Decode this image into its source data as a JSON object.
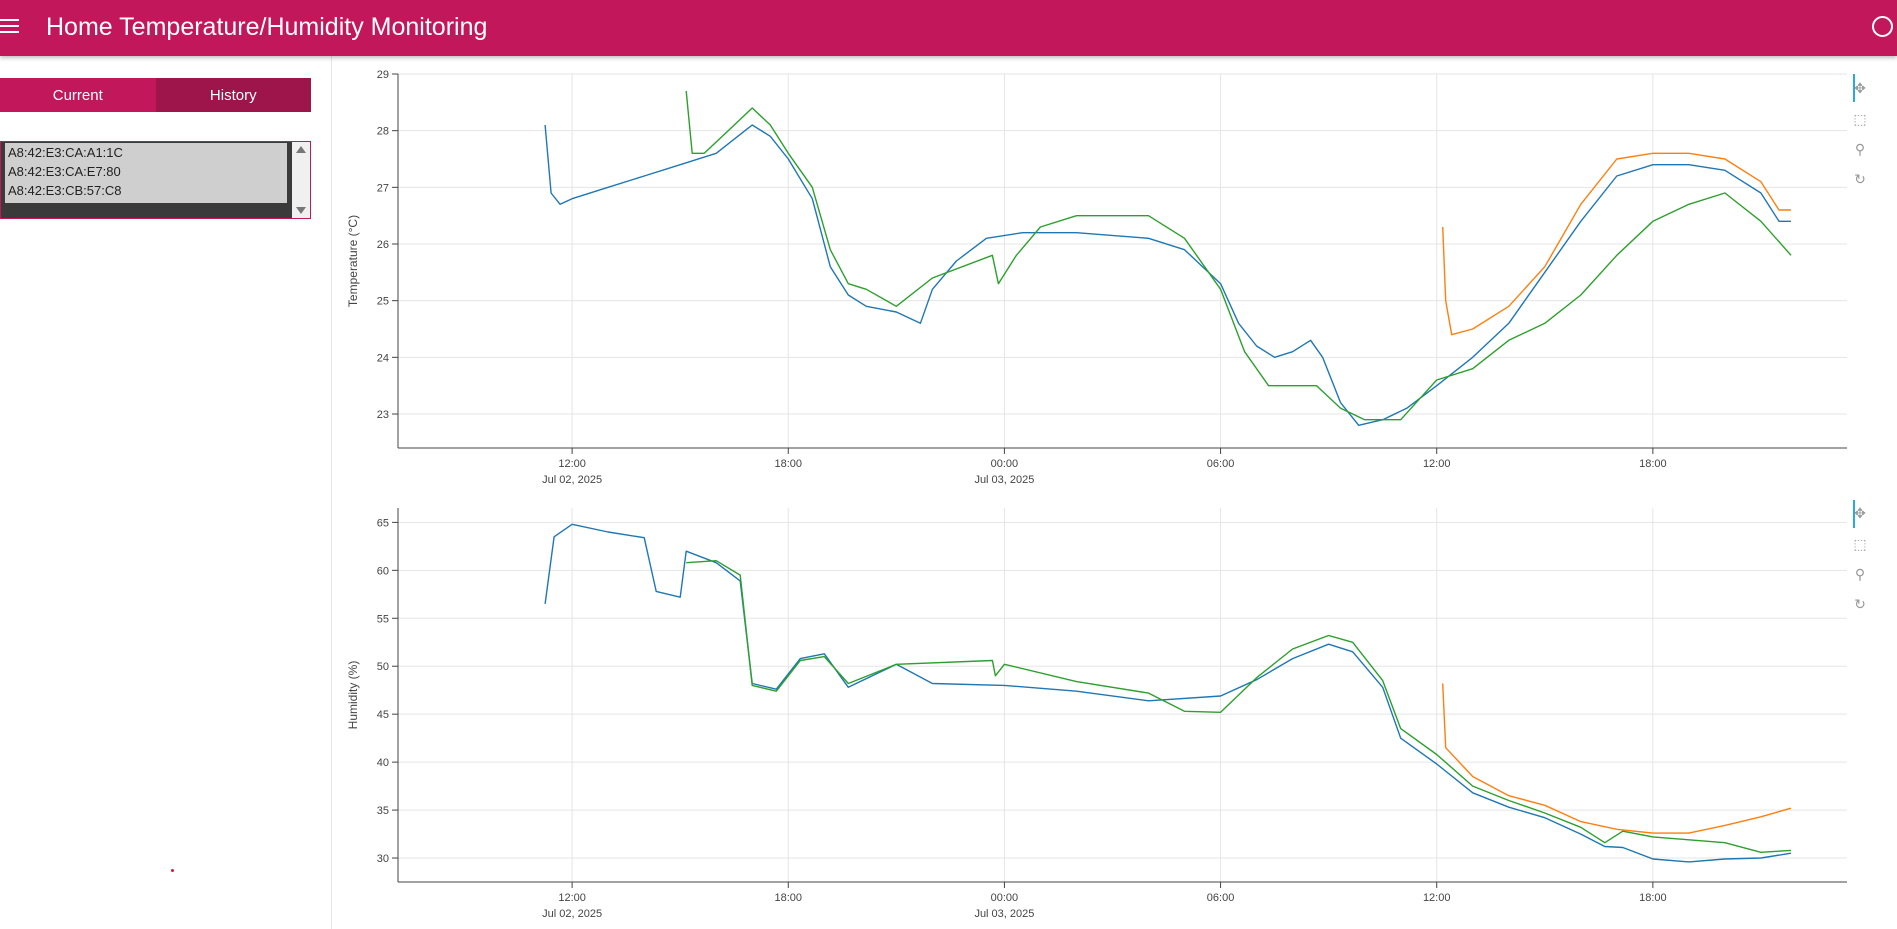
{
  "app": {
    "title": "Home Temperature/Humidity Monitoring"
  },
  "icons": {
    "menu": "hamburger-menu-icon",
    "status": "circle-status-icon",
    "pan": "pan-icon",
    "box_zoom": "box-zoom-icon",
    "wheel_zoom": "wheel-zoom-icon",
    "reset": "reset-icon"
  },
  "colors": {
    "brand": "#c2185b",
    "brand_dark": "#9d154a",
    "blue": "#1f77b4",
    "orange": "#ff7f0e",
    "green": "#2ca02c",
    "tool_accent": "#26aae1"
  },
  "tabs": [
    {
      "label": "Current"
    },
    {
      "label": "History"
    }
  ],
  "devices": [
    {
      "mac": "A8:42:E3:CA:A1:1C"
    },
    {
      "mac": "A8:42:E3:CA:E7:80"
    },
    {
      "mac": "A8:42:E3:CB:57:C8"
    }
  ],
  "chart_data": [
    {
      "type": "line",
      "title": "",
      "xlabel": "",
      "ylabel": "Temperature (°C)",
      "ylim": [
        22.4,
        29
      ],
      "xlim": [
        "2025-07-02 07:10",
        "2025-07-03 23:30"
      ],
      "x_ticks": [
        {
          "time": "2025-07-02 12:00",
          "label": "12:00",
          "sublabel": "Jul 02, 2025"
        },
        {
          "time": "2025-07-02 18:00",
          "label": "18:00",
          "sublabel": ""
        },
        {
          "time": "2025-07-03 00:00",
          "label": "00:00",
          "sublabel": "Jul 03, 2025"
        },
        {
          "time": "2025-07-03 06:00",
          "label": "06:00",
          "sublabel": ""
        },
        {
          "time": "2025-07-03 12:00",
          "label": "12:00",
          "sublabel": ""
        },
        {
          "time": "2025-07-03 18:00",
          "label": "18:00",
          "sublabel": ""
        }
      ],
      "y_ticks": [
        23,
        24,
        25,
        26,
        27,
        28,
        29
      ],
      "grid": true,
      "series": [
        {
          "color": "#1f77b4",
          "points": [
            [
              "2025-07-02 11:15",
              28.1
            ],
            [
              "2025-07-02 11:25",
              26.9
            ],
            [
              "2025-07-02 11:40",
              26.7
            ],
            [
              "2025-07-02 12:00",
              26.8
            ],
            [
              "2025-07-02 13:00",
              27.0
            ],
            [
              "2025-07-02 14:00",
              27.2
            ],
            [
              "2025-07-02 15:00",
              27.4
            ],
            [
              "2025-07-02 16:00",
              27.6
            ],
            [
              "2025-07-02 17:00",
              28.1
            ],
            [
              "2025-07-02 17:30",
              27.9
            ],
            [
              "2025-07-02 18:00",
              27.5
            ],
            [
              "2025-07-02 18:40",
              26.8
            ],
            [
              "2025-07-02 19:10",
              25.6
            ],
            [
              "2025-07-02 19:40",
              25.1
            ],
            [
              "2025-07-02 20:10",
              24.9
            ],
            [
              "2025-07-02 21:00",
              24.8
            ],
            [
              "2025-07-02 21:40",
              24.6
            ],
            [
              "2025-07-02 22:00",
              25.2
            ],
            [
              "2025-07-02 22:40",
              25.7
            ],
            [
              "2025-07-02 23:30",
              26.1
            ],
            [
              "2025-07-03 00:30",
              26.2
            ],
            [
              "2025-07-03 02:00",
              26.2
            ],
            [
              "2025-07-03 04:00",
              26.1
            ],
            [
              "2025-07-03 05:00",
              25.9
            ],
            [
              "2025-07-03 06:00",
              25.3
            ],
            [
              "2025-07-03 06:30",
              24.6
            ],
            [
              "2025-07-03 07:00",
              24.2
            ],
            [
              "2025-07-03 07:30",
              24.0
            ],
            [
              "2025-07-03 08:00",
              24.1
            ],
            [
              "2025-07-03 08:30",
              24.3
            ],
            [
              "2025-07-03 08:50",
              24.0
            ],
            [
              "2025-07-03 09:20",
              23.2
            ],
            [
              "2025-07-03 09:50",
              22.8
            ],
            [
              "2025-07-03 10:30",
              22.9
            ],
            [
              "2025-07-03 11:10",
              23.1
            ],
            [
              "2025-07-03 12:00",
              23.5
            ],
            [
              "2025-07-03 13:00",
              24.0
            ],
            [
              "2025-07-03 14:00",
              24.6
            ],
            [
              "2025-07-03 15:00",
              25.5
            ],
            [
              "2025-07-03 16:00",
              26.4
            ],
            [
              "2025-07-03 17:00",
              27.2
            ],
            [
              "2025-07-03 18:00",
              27.4
            ],
            [
              "2025-07-03 19:00",
              27.4
            ],
            [
              "2025-07-03 20:00",
              27.3
            ],
            [
              "2025-07-03 21:00",
              26.9
            ],
            [
              "2025-07-03 21:30",
              26.4
            ],
            [
              "2025-07-03 21:50",
              26.4
            ]
          ]
        },
        {
          "color": "#ff7f0e",
          "points": [
            [
              "2025-07-03 12:10",
              26.3
            ],
            [
              "2025-07-03 12:15",
              25.0
            ],
            [
              "2025-07-03 12:25",
              24.4
            ],
            [
              "2025-07-03 13:00",
              24.5
            ],
            [
              "2025-07-03 14:00",
              24.9
            ],
            [
              "2025-07-03 15:00",
              25.6
            ],
            [
              "2025-07-03 16:00",
              26.7
            ],
            [
              "2025-07-03 17:00",
              27.5
            ],
            [
              "2025-07-03 18:00",
              27.6
            ],
            [
              "2025-07-03 19:00",
              27.6
            ],
            [
              "2025-07-03 20:00",
              27.5
            ],
            [
              "2025-07-03 21:00",
              27.1
            ],
            [
              "2025-07-03 21:30",
              26.6
            ],
            [
              "2025-07-03 21:50",
              26.6
            ]
          ]
        },
        {
          "color": "#2ca02c",
          "points": [
            [
              "2025-07-02 15:10",
              28.7
            ],
            [
              "2025-07-02 15:20",
              27.6
            ],
            [
              "2025-07-02 15:40",
              27.6
            ],
            [
              "2025-07-02 16:20",
              28.0
            ],
            [
              "2025-07-02 17:00",
              28.4
            ],
            [
              "2025-07-02 17:30",
              28.1
            ],
            [
              "2025-07-02 18:00",
              27.6
            ],
            [
              "2025-07-02 18:40",
              27.0
            ],
            [
              "2025-07-02 19:10",
              25.9
            ],
            [
              "2025-07-02 19:40",
              25.3
            ],
            [
              "2025-07-02 20:10",
              25.2
            ],
            [
              "2025-07-02 21:00",
              24.9
            ],
            [
              "2025-07-02 22:00",
              25.4
            ],
            [
              "2025-07-02 23:40",
              25.8
            ],
            [
              "2025-07-02 23:50",
              25.3
            ],
            [
              "2025-07-03 00:20",
              25.8
            ],
            [
              "2025-07-03 01:00",
              26.3
            ],
            [
              "2025-07-03 02:00",
              26.5
            ],
            [
              "2025-07-03 04:00",
              26.5
            ],
            [
              "2025-07-03 05:00",
              26.1
            ],
            [
              "2025-07-03 06:00",
              25.2
            ],
            [
              "2025-07-03 06:40",
              24.1
            ],
            [
              "2025-07-03 07:20",
              23.5
            ],
            [
              "2025-07-03 08:00",
              23.5
            ],
            [
              "2025-07-03 08:40",
              23.5
            ],
            [
              "2025-07-03 09:20",
              23.1
            ],
            [
              "2025-07-03 10:00",
              22.9
            ],
            [
              "2025-07-03 11:00",
              22.9
            ],
            [
              "2025-07-03 12:00",
              23.6
            ],
            [
              "2025-07-03 13:00",
              23.8
            ],
            [
              "2025-07-03 14:00",
              24.3
            ],
            [
              "2025-07-03 15:00",
              24.6
            ],
            [
              "2025-07-03 16:00",
              25.1
            ],
            [
              "2025-07-03 17:00",
              25.8
            ],
            [
              "2025-07-03 18:00",
              26.4
            ],
            [
              "2025-07-03 19:00",
              26.7
            ],
            [
              "2025-07-03 20:00",
              26.9
            ],
            [
              "2025-07-03 21:00",
              26.4
            ],
            [
              "2025-07-03 21:50",
              25.8
            ]
          ]
        }
      ]
    },
    {
      "type": "line",
      "title": "",
      "xlabel": "",
      "ylabel": "Humidity (%)",
      "ylim": [
        27.5,
        66.5
      ],
      "xlim": [
        "2025-07-02 07:10",
        "2025-07-03 23:30"
      ],
      "x_ticks": [
        {
          "time": "2025-07-02 12:00",
          "label": "12:00",
          "sublabel": "Jul 02, 2025"
        },
        {
          "time": "2025-07-02 18:00",
          "label": "18:00",
          "sublabel": ""
        },
        {
          "time": "2025-07-03 00:00",
          "label": "00:00",
          "sublabel": "Jul 03, 2025"
        },
        {
          "time": "2025-07-03 06:00",
          "label": "06:00",
          "sublabel": ""
        },
        {
          "time": "2025-07-03 12:00",
          "label": "12:00",
          "sublabel": ""
        },
        {
          "time": "2025-07-03 18:00",
          "label": "18:00",
          "sublabel": ""
        }
      ],
      "y_ticks": [
        30,
        35,
        40,
        45,
        50,
        55,
        60,
        65
      ],
      "grid": true,
      "series": [
        {
          "color": "#1f77b4",
          "points": [
            [
              "2025-07-02 11:15",
              56.5
            ],
            [
              "2025-07-02 11:30",
              63.5
            ],
            [
              "2025-07-02 12:00",
              64.8
            ],
            [
              "2025-07-02 13:00",
              64.0
            ],
            [
              "2025-07-02 14:00",
              63.4
            ],
            [
              "2025-07-02 14:20",
              57.8
            ],
            [
              "2025-07-02 15:00",
              57.2
            ],
            [
              "2025-07-02 15:10",
              62.0
            ],
            [
              "2025-07-02 16:00",
              60.8
            ],
            [
              "2025-07-02 16:40",
              58.9
            ],
            [
              "2025-07-02 17:00",
              48.2
            ],
            [
              "2025-07-02 17:40",
              47.6
            ],
            [
              "2025-07-02 18:20",
              50.8
            ],
            [
              "2025-07-02 19:00",
              51.3
            ],
            [
              "2025-07-02 19:40",
              47.8
            ],
            [
              "2025-07-02 21:00",
              50.2
            ],
            [
              "2025-07-02 22:00",
              48.2
            ],
            [
              "2025-07-03 00:00",
              48.0
            ],
            [
              "2025-07-03 02:00",
              47.4
            ],
            [
              "2025-07-03 04:00",
              46.4
            ],
            [
              "2025-07-03 06:00",
              46.9
            ],
            [
              "2025-07-03 07:00",
              48.6
            ],
            [
              "2025-07-03 08:00",
              50.8
            ],
            [
              "2025-07-03 09:00",
              52.3
            ],
            [
              "2025-07-03 09:40",
              51.5
            ],
            [
              "2025-07-03 10:30",
              47.8
            ],
            [
              "2025-07-03 11:00",
              42.5
            ],
            [
              "2025-07-03 12:00",
              39.8
            ],
            [
              "2025-07-03 13:00",
              36.8
            ],
            [
              "2025-07-03 14:00",
              35.3
            ],
            [
              "2025-07-03 15:00",
              34.2
            ],
            [
              "2025-07-03 16:00",
              32.5
            ],
            [
              "2025-07-03 16:40",
              31.2
            ],
            [
              "2025-07-03 17:10",
              31.1
            ],
            [
              "2025-07-03 18:00",
              29.9
            ],
            [
              "2025-07-03 19:00",
              29.6
            ],
            [
              "2025-07-03 20:00",
              29.9
            ],
            [
              "2025-07-03 21:00",
              30.0
            ],
            [
              "2025-07-03 21:50",
              30.5
            ]
          ]
        },
        {
          "color": "#ff7f0e",
          "points": [
            [
              "2025-07-03 12:10",
              48.2
            ],
            [
              "2025-07-03 12:15",
              41.5
            ],
            [
              "2025-07-03 13:00",
              38.5
            ],
            [
              "2025-07-03 14:00",
              36.5
            ],
            [
              "2025-07-03 15:00",
              35.5
            ],
            [
              "2025-07-03 16:00",
              33.8
            ],
            [
              "2025-07-03 17:00",
              33.0
            ],
            [
              "2025-07-03 18:00",
              32.6
            ],
            [
              "2025-07-03 19:00",
              32.6
            ],
            [
              "2025-07-03 20:00",
              33.4
            ],
            [
              "2025-07-03 21:00",
              34.3
            ],
            [
              "2025-07-03 21:50",
              35.2
            ]
          ]
        },
        {
          "color": "#2ca02c",
          "points": [
            [
              "2025-07-02 15:10",
              60.8
            ],
            [
              "2025-07-02 16:00",
              61.0
            ],
            [
              "2025-07-02 16:40",
              59.5
            ],
            [
              "2025-07-02 17:00",
              48.0
            ],
            [
              "2025-07-02 17:40",
              47.4
            ],
            [
              "2025-07-02 18:20",
              50.6
            ],
            [
              "2025-07-02 19:00",
              51.0
            ],
            [
              "2025-07-02 19:40",
              48.2
            ],
            [
              "2025-07-02 21:00",
              50.2
            ],
            [
              "2025-07-02 23:40",
              50.6
            ],
            [
              "2025-07-02 23:45",
              49.0
            ],
            [
              "2025-07-03 00:00",
              50.2
            ],
            [
              "2025-07-03 02:00",
              48.4
            ],
            [
              "2025-07-03 04:00",
              47.2
            ],
            [
              "2025-07-03 05:00",
              45.3
            ],
            [
              "2025-07-03 06:00",
              45.2
            ],
            [
              "2025-07-03 07:00",
              48.8
            ],
            [
              "2025-07-03 08:00",
              51.8
            ],
            [
              "2025-07-03 09:00",
              53.2
            ],
            [
              "2025-07-03 09:40",
              52.5
            ],
            [
              "2025-07-03 10:30",
              48.5
            ],
            [
              "2025-07-03 11:00",
              43.5
            ],
            [
              "2025-07-03 12:00",
              40.8
            ],
            [
              "2025-07-03 13:00",
              37.5
            ],
            [
              "2025-07-03 14:00",
              36.0
            ],
            [
              "2025-07-03 15:00",
              34.7
            ],
            [
              "2025-07-03 16:00",
              33.2
            ],
            [
              "2025-07-03 16:40",
              31.6
            ],
            [
              "2025-07-03 17:10",
              32.8
            ],
            [
              "2025-07-03 18:00",
              32.2
            ],
            [
              "2025-07-03 19:00",
              31.9
            ],
            [
              "2025-07-03 20:00",
              31.6
            ],
            [
              "2025-07-03 21:00",
              30.6
            ],
            [
              "2025-07-03 21:50",
              30.8
            ]
          ]
        }
      ]
    }
  ]
}
